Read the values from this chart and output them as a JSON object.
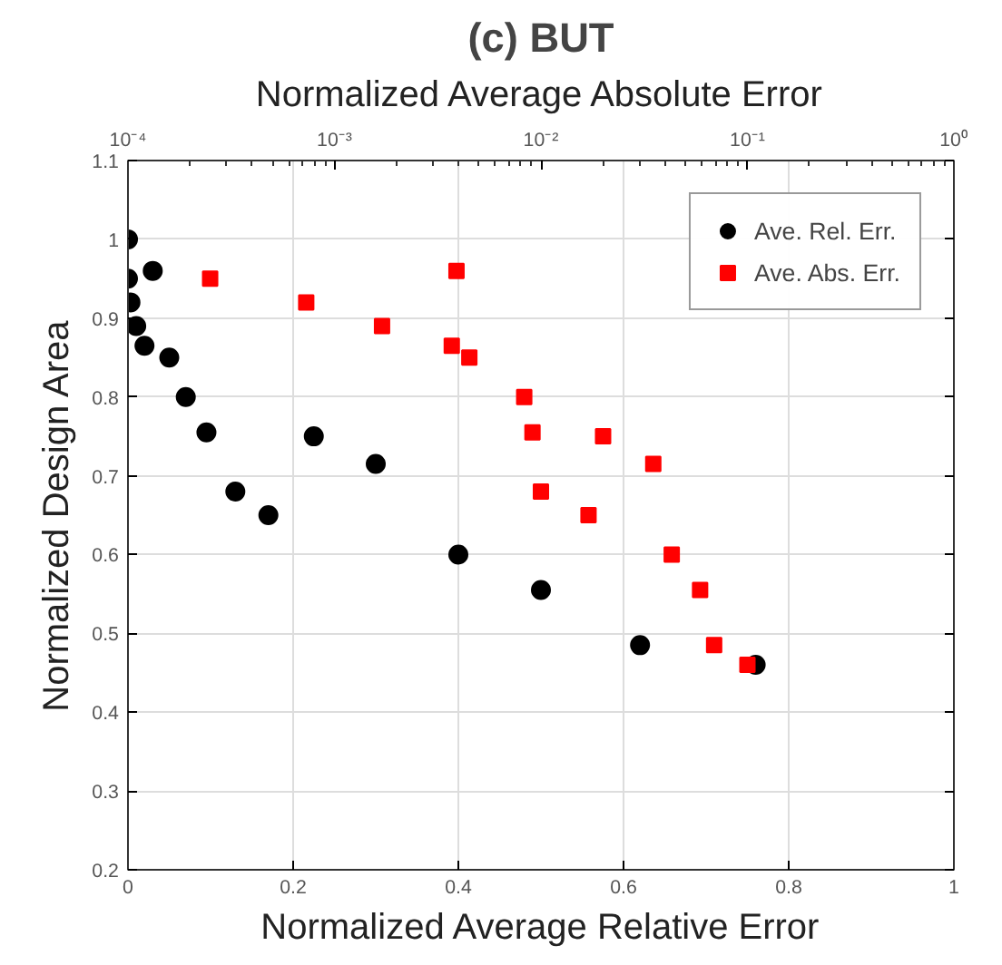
{
  "chart_data": {
    "type": "scatter",
    "title": "(c) BUT",
    "xlabel": "Normalized Average Relative Error",
    "x2label": "Normalized Average Absolute Error",
    "ylabel": "Normalized Design Area",
    "xlim": [
      0,
      1
    ],
    "xticks": [
      0,
      0.2,
      0.4,
      0.6,
      0.8,
      1
    ],
    "x2lim": [
      0.0001,
      1
    ],
    "x2ticks": [
      {
        "value": 0.0001,
        "label": "10⁻⁴"
      },
      {
        "value": 0.001,
        "label": "10⁻³"
      },
      {
        "value": 0.01,
        "label": "10⁻²"
      },
      {
        "value": 0.1,
        "label": "10⁻¹"
      },
      {
        "value": 1,
        "label": "10⁰"
      }
    ],
    "log": "x2",
    "ylim": [
      0.2,
      1.1
    ],
    "yticks": [
      0.2,
      0.3,
      0.4,
      0.5,
      0.6,
      0.7,
      0.8,
      0.9,
      1,
      1.1
    ],
    "grid": true,
    "legend": "top right",
    "series": [
      {
        "name": "Ave. Rel. Err.",
        "color": "#000000",
        "marker": "circle",
        "x": [
          0,
          0,
          0.003,
          0.01,
          0.03,
          0.02,
          0.05,
          0.07,
          0.095,
          0.13,
          0.17,
          0.225,
          0.3,
          0.4,
          0.5,
          0.62,
          0.76
        ],
        "values": [
          1.0,
          0.95,
          0.92,
          0.89,
          0.96,
          0.865,
          0.85,
          0.8,
          0.755,
          0.68,
          0.65,
          0.75,
          0.715,
          0.6,
          0.555,
          0.485,
          0.46
        ]
      },
      {
        "name": "Ave. Abs. Err.",
        "color": "#ff0000",
        "marker": "square",
        "axis": "x2",
        "x": [
          0.00025,
          0.00073,
          0.0017,
          0.0037,
          0.0039,
          0.0045,
          0.0083,
          0.0091,
          0.01,
          0.017,
          0.02,
          0.035,
          0.043,
          0.059,
          0.069,
          0.1
        ],
        "values": [
          0.95,
          0.92,
          0.89,
          0.865,
          0.96,
          0.85,
          0.8,
          0.755,
          0.68,
          0.65,
          0.75,
          0.715,
          0.6,
          0.555,
          0.485,
          0.46
        ]
      }
    ]
  }
}
